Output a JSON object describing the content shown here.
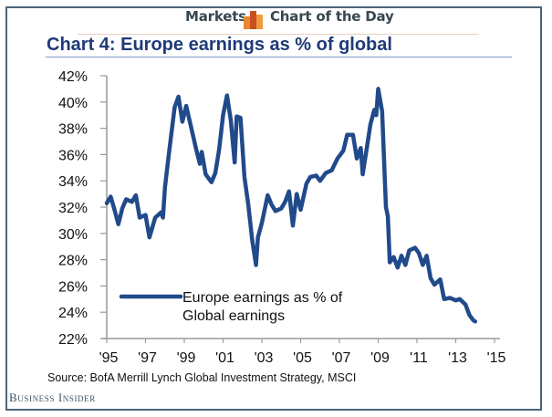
{
  "header": {
    "section": "Markets",
    "feature": "Chart of the Day",
    "icon": "bar-chart-icon"
  },
  "footer": {
    "source": "Source: BofA Merrill Lynch Global Investment Strategy, MSCI",
    "brand": "Business Insider"
  },
  "colors": {
    "series": "#214a8a",
    "title": "#1f3a78",
    "header_text": "#37474f",
    "frame": "#4a6577",
    "icon_orange": "#e9862f",
    "icon_dark": "#c94f1f"
  },
  "chart_data": {
    "type": "line",
    "title": "Chart 4: Europe earnings as % of global",
    "xlabel": "",
    "ylabel": "",
    "xlim": [
      1995,
      2015
    ],
    "ylim": [
      22,
      42
    ],
    "grid": false,
    "legend_position": "bottom-left",
    "x_ticks": [
      "'95",
      "'97",
      "'99",
      "'01",
      "'03",
      "'05",
      "'07",
      "'09",
      "'11",
      "'13",
      "'15"
    ],
    "x_tick_values": [
      1995,
      1997,
      1999,
      2001,
      2003,
      2005,
      2007,
      2009,
      2011,
      2013,
      2015
    ],
    "y_ticks": [
      "22%",
      "24%",
      "26%",
      "28%",
      "30%",
      "32%",
      "34%",
      "36%",
      "38%",
      "40%",
      "42%"
    ],
    "y_tick_values": [
      22,
      24,
      26,
      28,
      30,
      32,
      34,
      36,
      38,
      40,
      42
    ],
    "series": [
      {
        "name": "Europe earnings as % of Global earnings",
        "legend_lines": [
          "Europe earnings as % of",
          "Global earnings"
        ],
        "x": [
          1995.0,
          1995.2,
          1995.4,
          1995.6,
          1995.8,
          1996.0,
          1996.3,
          1996.5,
          1996.7,
          1997.0,
          1997.2,
          1997.5,
          1997.8,
          1997.9,
          1998.0,
          1998.2,
          1998.5,
          1998.7,
          1998.9,
          1999.1,
          1999.3,
          1999.6,
          1999.8,
          1999.9,
          2000.1,
          2000.4,
          2000.6,
          2000.8,
          2001.0,
          2001.2,
          2001.4,
          2001.6,
          2001.7,
          2001.9,
          2002.1,
          2002.3,
          2002.5,
          2002.7,
          2002.8,
          2003.0,
          2003.3,
          2003.5,
          2003.7,
          2004.0,
          2004.2,
          2004.4,
          2004.6,
          2004.8,
          2005.0,
          2005.3,
          2005.5,
          2005.8,
          2006.0,
          2006.3,
          2006.6,
          2006.9,
          2007.2,
          2007.4,
          2007.7,
          2007.9,
          2008.1,
          2008.2,
          2008.4,
          2008.6,
          2008.8,
          2008.9,
          2009.0,
          2009.2,
          2009.4,
          2009.5,
          2009.6,
          2009.8,
          2010.0,
          2010.2,
          2010.4,
          2010.6,
          2010.9,
          2011.1,
          2011.3,
          2011.5,
          2011.7,
          2011.9,
          2012.2,
          2012.4,
          2012.7,
          2013.0,
          2013.2,
          2013.5,
          2013.7,
          2013.9,
          2014.0
        ],
        "values": [
          32.3,
          32.8,
          31.8,
          30.7,
          31.9,
          32.6,
          32.4,
          32.9,
          31.2,
          31.4,
          29.7,
          31.2,
          31.6,
          31.2,
          33.5,
          36.0,
          39.6,
          40.4,
          38.5,
          39.7,
          38.4,
          36.5,
          35.3,
          36.2,
          34.5,
          33.9,
          34.6,
          36.4,
          39.0,
          40.5,
          38.6,
          35.4,
          38.9,
          38.8,
          34.3,
          32.2,
          29.5,
          27.6,
          29.7,
          30.8,
          32.9,
          32.2,
          31.7,
          31.9,
          32.4,
          33.2,
          30.6,
          33.0,
          31.8,
          33.8,
          34.3,
          34.4,
          34.0,
          34.6,
          34.8,
          35.7,
          36.3,
          37.5,
          37.5,
          35.7,
          36.5,
          34.5,
          36.4,
          38.3,
          39.4,
          39.0,
          41.0,
          39.3,
          32.0,
          31.3,
          27.8,
          28.2,
          27.4,
          28.3,
          27.6,
          28.7,
          28.9,
          28.5,
          27.6,
          28.3,
          26.6,
          26.1,
          26.5,
          25.0,
          25.1,
          24.9,
          25.0,
          24.6,
          23.8,
          23.4,
          23.3
        ]
      }
    ]
  }
}
